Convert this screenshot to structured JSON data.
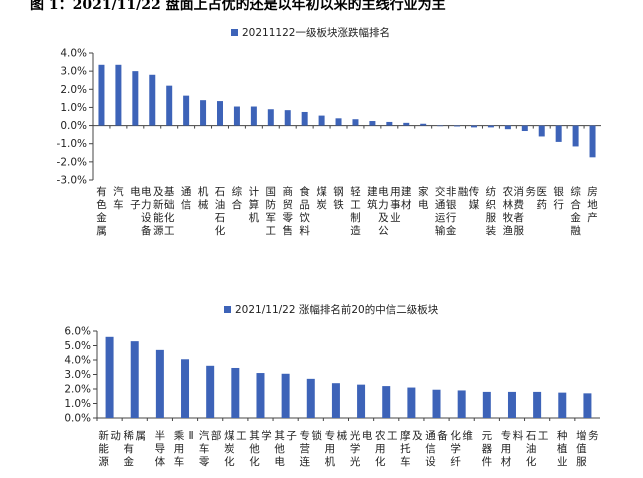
{
  "figure_caption": "图 1：2021/11/22 盘面上占优的还是以年初以来的主线行业为主",
  "chart_data": [
    {
      "type": "bar",
      "legend": "20211122一级板块涨跌幅排名",
      "legend_position": "top-center",
      "categories": [
        "有色金属",
        "汽车",
        "电子",
        "电力设备及新能源",
        "基础化工",
        "通信",
        "机械",
        "石油石化",
        "综合",
        "计算机",
        "国防军工",
        "商贸零售",
        "食品饮料",
        "煤炭",
        "钢铁",
        "轻工制造",
        "建筑",
        "电力及公用事业",
        "建材",
        "家电",
        "交通运输",
        "非银行金融",
        "传媒",
        "纺织服装",
        "农林牧渔",
        "消费者服务",
        "医药",
        "银行",
        "综合金融",
        "房地产"
      ],
      "values": [
        3.35,
        3.35,
        3.0,
        2.8,
        2.2,
        1.65,
        1.4,
        1.35,
        1.05,
        1.05,
        0.9,
        0.85,
        0.75,
        0.55,
        0.4,
        0.35,
        0.25,
        0.2,
        0.15,
        0.1,
        0.0,
        -0.05,
        -0.1,
        -0.1,
        -0.2,
        -0.3,
        -0.6,
        -0.9,
        -1.15,
        -1.75
      ],
      "y_ticks": [
        "4.0%",
        "3.0%",
        "2.0%",
        "1.0%",
        "0.0%",
        "-1.0%",
        "-2.0%",
        "-3.0%"
      ],
      "ylim": [
        -3.0,
        4.0
      ],
      "grid": false,
      "color": "#3d63b8"
    },
    {
      "type": "bar",
      "legend": "2021/11/22 涨幅排名前20的中信二级板块",
      "legend_position": "top-center",
      "categories": [
        "新能源动",
        "稀有金属",
        "半导体",
        "乘用车Ⅱ",
        "汽车零部",
        "煤炭化工",
        "其他化学",
        "其他电子",
        "专营连锁",
        "专用机械",
        "光学光电",
        "农用化工",
        "摩托车及",
        "通信设备",
        "化学纤维",
        "元器件",
        "专用材料",
        "石油化工",
        "种植业",
        "增值服务"
      ],
      "values": [
        5.6,
        5.3,
        4.7,
        4.05,
        3.6,
        3.45,
        3.1,
        3.05,
        2.7,
        2.4,
        2.3,
        2.2,
        2.1,
        1.95,
        1.9,
        1.8,
        1.8,
        1.8,
        1.75,
        1.7
      ],
      "y_ticks": [
        "6.0%",
        "5.0%",
        "4.0%",
        "3.0%",
        "2.0%",
        "1.0%",
        "0.0%"
      ],
      "ylim": [
        0,
        6.0
      ],
      "grid": false,
      "color": "#3d63b8"
    }
  ]
}
